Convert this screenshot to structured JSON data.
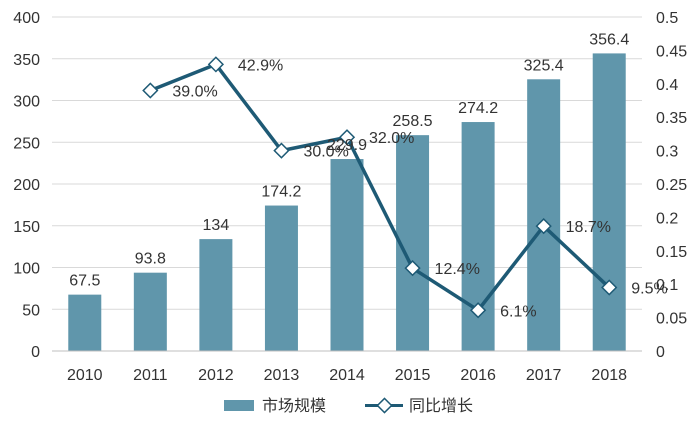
{
  "chart_data": {
    "type": "bar",
    "categories": [
      "2010",
      "2011",
      "2012",
      "2013",
      "2014",
      "2015",
      "2016",
      "2017",
      "2018"
    ],
    "series": [
      {
        "name": "市场规模",
        "type": "bar",
        "axis": "left",
        "values": [
          67.5,
          93.8,
          134,
          174.2,
          229.9,
          258.5,
          274.2,
          325.4,
          356.4
        ],
        "labels": [
          "67.5",
          "93.8",
          "134",
          "174.2",
          "229.9",
          "258.5",
          "274.2",
          "325.4",
          "356.4"
        ],
        "color": "#6096ab"
      },
      {
        "name": "同比增长",
        "type": "line",
        "axis": "right",
        "values": [
          null,
          0.39,
          0.429,
          0.3,
          0.32,
          0.124,
          0.061,
          0.187,
          0.095
        ],
        "labels": [
          "",
          "39.0%",
          "42.9%",
          "30.0%",
          "32.0%",
          "12.4%",
          "6.1%",
          "18.7%",
          "9.5%"
        ],
        "color": "#1e5a75"
      }
    ],
    "y_left": {
      "range": [
        0,
        400
      ],
      "ticks": [
        "0",
        "50",
        "100",
        "150",
        "200",
        "250",
        "300",
        "350",
        "400"
      ]
    },
    "y_right": {
      "range": [
        0,
        0.5
      ],
      "ticks": [
        "0",
        "0.05",
        "0.1",
        "0.15",
        "0.2",
        "0.25",
        "0.3",
        "0.35",
        "0.4",
        "0.45",
        "0.5"
      ]
    },
    "grid": true,
    "legend_position": "bottom"
  }
}
